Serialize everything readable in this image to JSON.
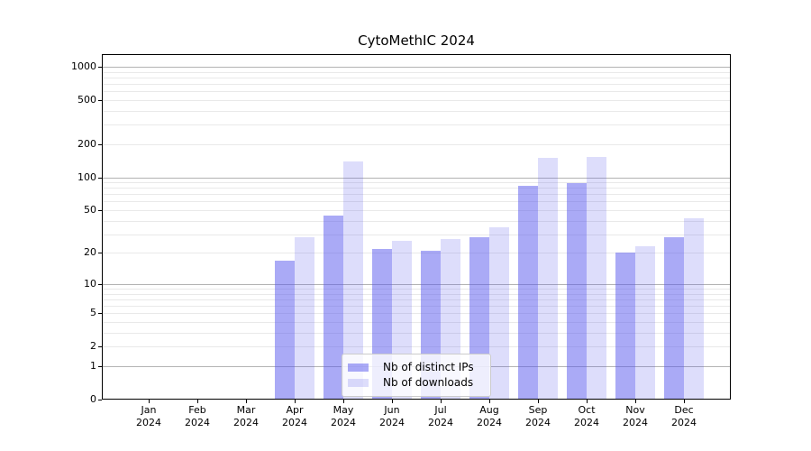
{
  "chart_data": {
    "type": "bar",
    "title": "CytoMethIC 2024",
    "year_label": "2024",
    "categories": [
      "Jan",
      "Feb",
      "Mar",
      "Apr",
      "May",
      "Jun",
      "Jul",
      "Aug",
      "Sep",
      "Oct",
      "Nov",
      "Dec"
    ],
    "series": [
      {
        "name": "Nb of distinct IPs",
        "color": "#5555ed",
        "alpha": 0.5,
        "values": [
          0,
          0,
          0,
          17,
          45,
          22,
          21,
          28,
          84,
          88,
          20,
          28
        ]
      },
      {
        "name": "Nb of downloads",
        "color": "#5555ed",
        "alpha": 0.2,
        "values": [
          0,
          0,
          0,
          28,
          140,
          26,
          27,
          35,
          149,
          152,
          23,
          42
        ]
      }
    ],
    "xlabel": "",
    "ylabel": "",
    "y_scale": "log1p",
    "y_ticks": [
      0,
      1,
      2,
      5,
      10,
      20,
      50,
      100,
      200,
      500,
      1000
    ],
    "y_major_gridlines": [
      1,
      10,
      100,
      1000
    ],
    "ylim": [
      0,
      1300
    ],
    "grid": true,
    "legend_position": "lower center"
  },
  "colors": {
    "major_grid": "#b3b3b3",
    "minor_grid": "#e9e9e9",
    "axis": "#000000",
    "text": "#000000",
    "legend_border": "#cccccc"
  }
}
